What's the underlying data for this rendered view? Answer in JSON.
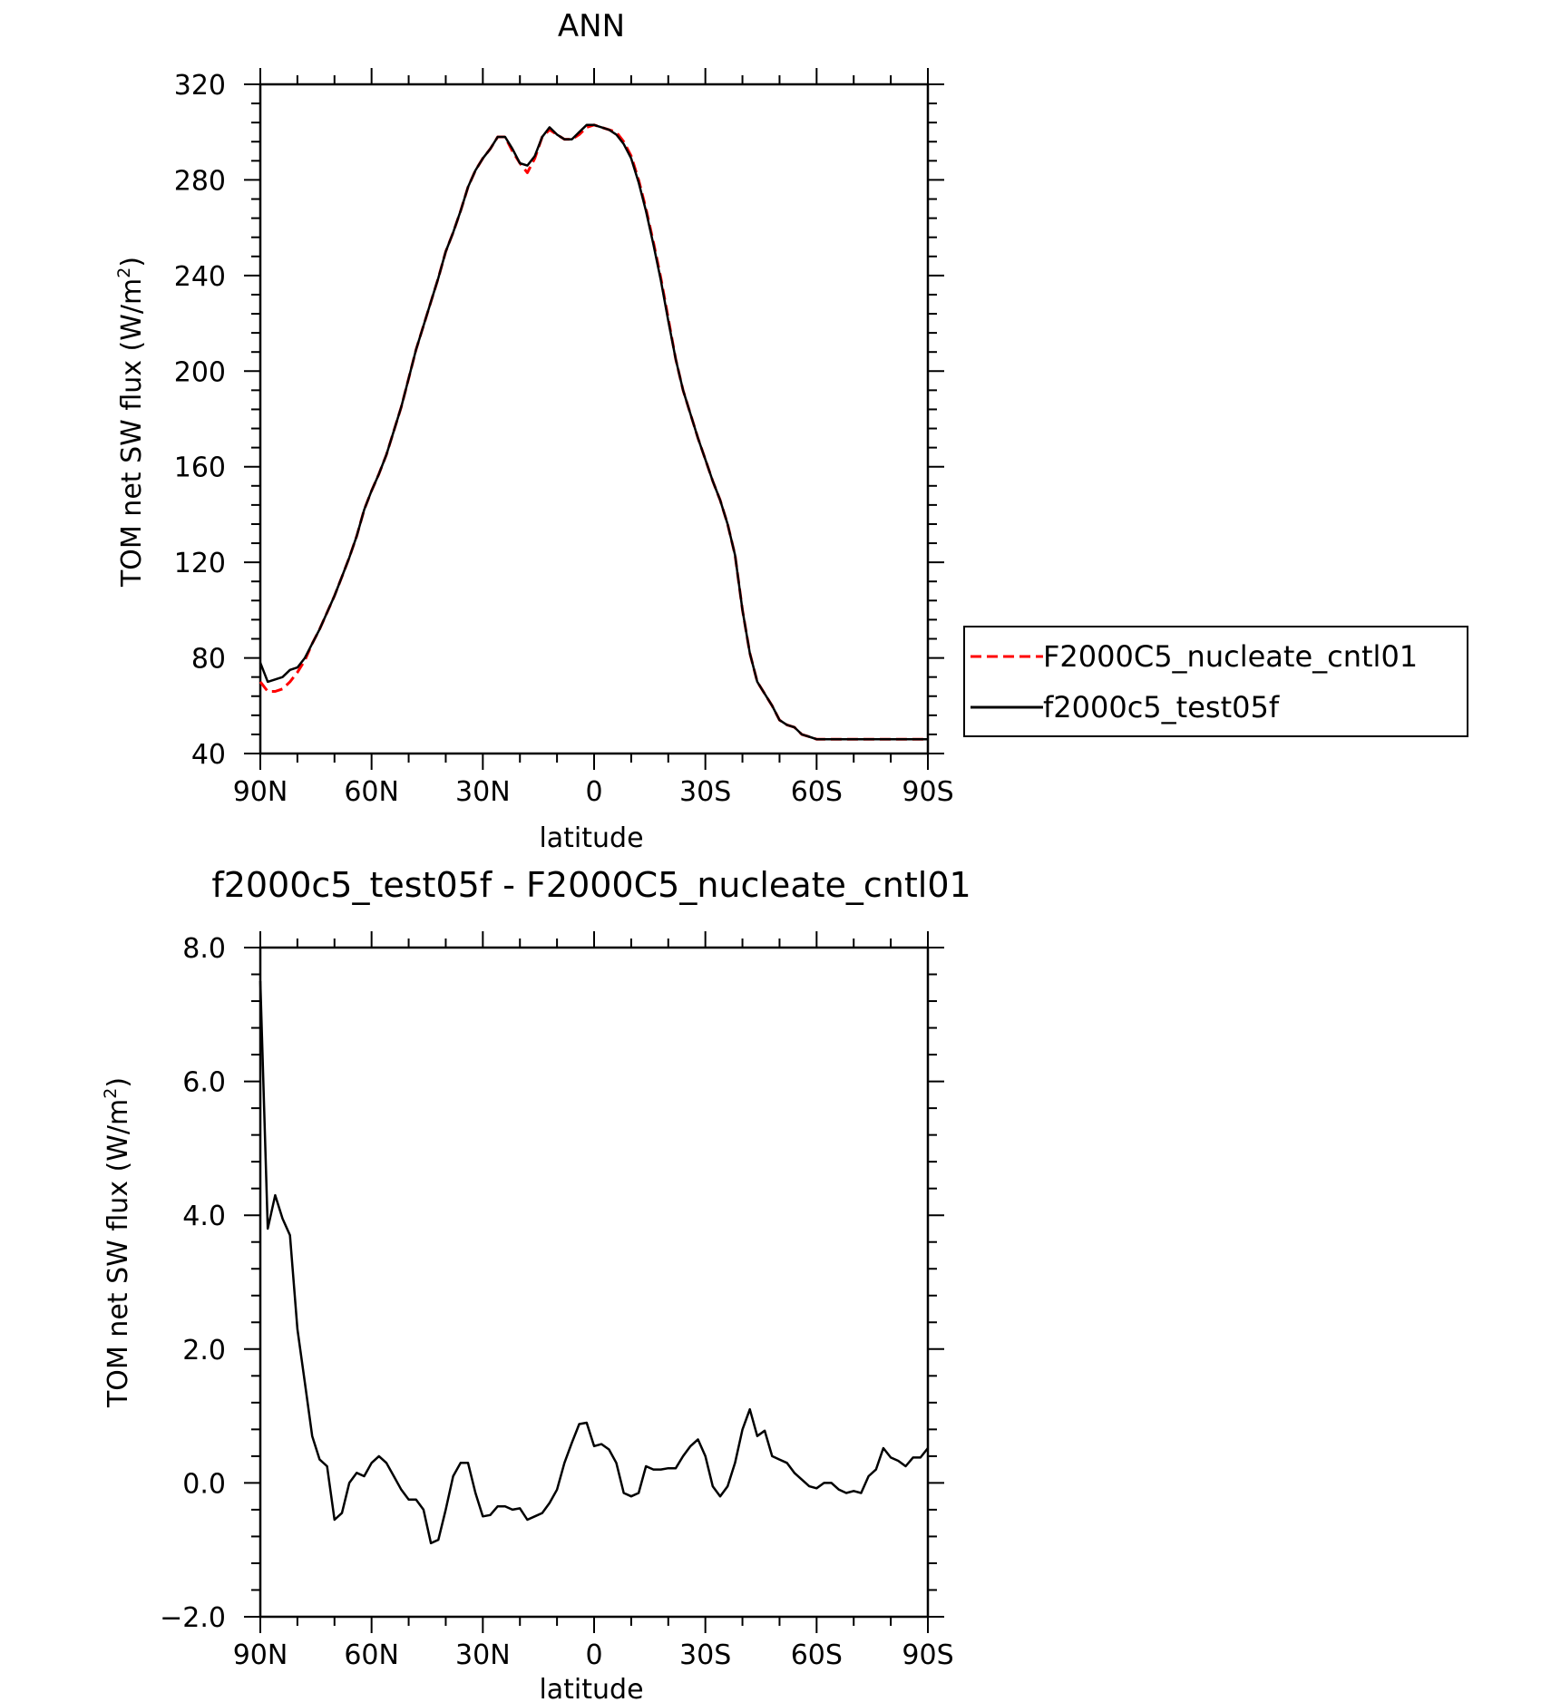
{
  "chart_data": [
    {
      "type": "line",
      "title": "ANN",
      "xlabel": "latitude",
      "ylabel": "TOM net SW flux (W/m",
      "ylabel_sup": "2",
      "ylabel_close": ")",
      "xlim": [
        90,
        -90
      ],
      "ylim": [
        40,
        320
      ],
      "x_ticks": [
        {
          "value": 90,
          "label": "90N"
        },
        {
          "value": 60,
          "label": "60N"
        },
        {
          "value": 30,
          "label": "30N"
        },
        {
          "value": 0,
          "label": "0"
        },
        {
          "value": -30,
          "label": "30S"
        },
        {
          "value": -60,
          "label": "60S"
        },
        {
          "value": -90,
          "label": "90S"
        }
      ],
      "y_ticks": [
        {
          "value": 320,
          "label": "320"
        },
        {
          "value": 280,
          "label": "280"
        },
        {
          "value": 240,
          "label": "240"
        },
        {
          "value": 200,
          "label": "200"
        },
        {
          "value": 160,
          "label": "160"
        },
        {
          "value": 120,
          "label": "120"
        },
        {
          "value": 80,
          "label": "80"
        },
        {
          "value": 40,
          "label": "40"
        }
      ],
      "legend": {
        "position": "right"
      },
      "series": [
        {
          "name": "F2000C5_nucleate_cntl01",
          "color": "#ff0000",
          "dash": "dashed",
          "x": [
            90,
            88,
            86,
            84,
            82,
            80,
            78,
            76,
            74,
            72,
            70,
            68,
            66,
            64,
            62,
            60,
            58,
            56,
            54,
            52,
            50,
            48,
            46,
            44,
            42,
            40,
            38,
            36,
            34,
            32,
            30,
            28,
            26,
            24,
            22,
            20,
            18,
            16,
            14,
            12,
            10,
            8,
            6,
            4,
            2,
            0,
            -2,
            -4,
            -6,
            -8,
            -10,
            -12,
            -14,
            -16,
            -18,
            -20,
            -22,
            -24,
            -26,
            -28,
            -30,
            -32,
            -34,
            -36,
            -38,
            -40,
            -42,
            -44,
            -46,
            -48,
            -50,
            -52,
            -54,
            -56,
            -58,
            -60,
            -62,
            -64,
            -66,
            -68,
            -70,
            -72,
            -74,
            -76,
            -78,
            -80,
            -82,
            -84,
            -86,
            -88,
            -90
          ],
          "y": [
            70,
            66,
            66,
            67,
            70,
            74,
            79,
            86,
            92,
            99,
            106,
            114,
            122,
            131,
            142,
            150,
            157,
            165,
            175,
            185,
            197,
            209,
            219,
            229,
            239,
            250,
            258,
            267,
            277,
            284,
            289,
            293,
            298,
            298,
            292,
            287,
            283,
            289,
            298,
            301,
            299,
            297,
            297,
            299,
            302,
            303,
            302,
            301,
            300,
            296,
            290,
            280,
            268,
            254,
            239,
            222,
            205,
            192,
            182,
            172,
            163,
            154,
            146,
            136,
            123,
            100,
            82,
            70,
            65,
            60,
            54,
            52,
            51,
            48,
            47,
            46,
            46,
            46,
            46,
            46,
            46,
            46,
            46,
            46,
            46,
            46,
            46,
            46,
            46,
            46,
            46
          ]
        },
        {
          "name": "f2000c5_test05f",
          "color": "#000000",
          "dash": "solid",
          "x": [
            90,
            88,
            86,
            84,
            82,
            80,
            78,
            76,
            74,
            72,
            70,
            68,
            66,
            64,
            62,
            60,
            58,
            56,
            54,
            52,
            50,
            48,
            46,
            44,
            42,
            40,
            38,
            36,
            34,
            32,
            30,
            28,
            26,
            24,
            22,
            20,
            18,
            16,
            14,
            12,
            10,
            8,
            6,
            4,
            2,
            0,
            -2,
            -4,
            -6,
            -8,
            -10,
            -12,
            -14,
            -16,
            -18,
            -20,
            -22,
            -24,
            -26,
            -28,
            -30,
            -32,
            -34,
            -36,
            -38,
            -40,
            -42,
            -44,
            -46,
            -48,
            -50,
            -52,
            -54,
            -56,
            -58,
            -60,
            -62,
            -64,
            -66,
            -68,
            -70,
            -72,
            -74,
            -76,
            -78,
            -80,
            -82,
            -84,
            -86,
            -88,
            -90
          ],
          "y": [
            78,
            70,
            71,
            72,
            75,
            76,
            80,
            86,
            92,
            99,
            106,
            114,
            122,
            131,
            142,
            150,
            157,
            165,
            175,
            185,
            197,
            209,
            219,
            229,
            239,
            250,
            258,
            267,
            277,
            284,
            289,
            293,
            298,
            298,
            293,
            287,
            286,
            290,
            298,
            302,
            299,
            297,
            297,
            300,
            303,
            303,
            302,
            301,
            299,
            295,
            289,
            279,
            267,
            253,
            238,
            221,
            205,
            192,
            182,
            172,
            163,
            154,
            146,
            136,
            123,
            100,
            82,
            70,
            65,
            60,
            54,
            52,
            51,
            48,
            47,
            46,
            46,
            46,
            46,
            46,
            46,
            46,
            46,
            46,
            46,
            46,
            46,
            46,
            46,
            46,
            46
          ]
        }
      ]
    },
    {
      "type": "line",
      "title": "f2000c5_test05f - F2000C5_nucleate_cntl01",
      "xlabel": "latitude",
      "ylabel": "TOM net SW flux (W/m",
      "ylabel_sup": "2",
      "ylabel_close": ")",
      "xlim": [
        90,
        -90
      ],
      "ylim": [
        -2.0,
        8.0
      ],
      "x_ticks": [
        {
          "value": 90,
          "label": "90N"
        },
        {
          "value": 60,
          "label": "60N"
        },
        {
          "value": 30,
          "label": "30N"
        },
        {
          "value": 0,
          "label": "0"
        },
        {
          "value": -30,
          "label": "30S"
        },
        {
          "value": -60,
          "label": "60S"
        },
        {
          "value": -90,
          "label": "90S"
        }
      ],
      "y_ticks": [
        {
          "value": 8.0,
          "label": "8.0"
        },
        {
          "value": 6.0,
          "label": "6.0"
        },
        {
          "value": 4.0,
          "label": "4.0"
        },
        {
          "value": 2.0,
          "label": "2.0"
        },
        {
          "value": 0.0,
          "label": "0.0"
        },
        {
          "value": -2.0,
          "label": "−2.0"
        }
      ],
      "series": [
        {
          "color": "#000000",
          "dash": "solid",
          "x": [
            90,
            88,
            86,
            84,
            82,
            80,
            78,
            76,
            74,
            72,
            70,
            68,
            66,
            64,
            62,
            60,
            58,
            56,
            54,
            52,
            50,
            48,
            46,
            44,
            42,
            40,
            38,
            36,
            34,
            32,
            30,
            28,
            26,
            24,
            22,
            20,
            18,
            16,
            14,
            12,
            10,
            8,
            6,
            4,
            2,
            0,
            -2,
            -4,
            -6,
            -8,
            -10,
            -12,
            -14,
            -16,
            -18,
            -20,
            -22,
            -24,
            -26,
            -28,
            -30,
            -32,
            -34,
            -36,
            -38,
            -40,
            -42,
            -44,
            -46,
            -48,
            -50,
            -52,
            -54,
            -56,
            -58,
            -60,
            -62,
            -64,
            -66,
            -68,
            -70,
            -72,
            -74,
            -76,
            -78,
            -80,
            -82,
            -84,
            -86,
            -88,
            -90
          ],
          "y": [
            7.5,
            3.8,
            4.3,
            3.95,
            3.7,
            2.3,
            1.5,
            0.7,
            0.35,
            0.25,
            -0.55,
            -0.45,
            0.0,
            0.15,
            0.1,
            0.3,
            0.4,
            0.3,
            0.1,
            -0.1,
            -0.25,
            -0.25,
            -0.4,
            -0.9,
            -0.85,
            -0.4,
            0.1,
            0.3,
            0.3,
            -0.15,
            -0.5,
            -0.48,
            -0.35,
            -0.35,
            -0.4,
            -0.38,
            -0.55,
            -0.5,
            -0.45,
            -0.3,
            -0.1,
            0.3,
            0.6,
            0.88,
            0.9,
            0.55,
            0.58,
            0.5,
            0.3,
            -0.15,
            -0.2,
            -0.15,
            0.25,
            0.2,
            0.2,
            0.22,
            0.22,
            0.4,
            0.55,
            0.65,
            0.4,
            -0.05,
            -0.2,
            -0.05,
            0.3,
            0.8,
            1.1,
            0.7,
            0.78,
            0.4,
            0.35,
            0.3,
            0.15,
            0.05,
            -0.05,
            -0.08,
            0.0,
            0.0,
            -0.1,
            -0.15,
            -0.12,
            -0.15,
            0.1,
            0.2,
            0.52,
            0.38,
            0.33,
            0.25,
            0.38,
            0.38,
            0.52
          ]
        }
      ]
    }
  ]
}
